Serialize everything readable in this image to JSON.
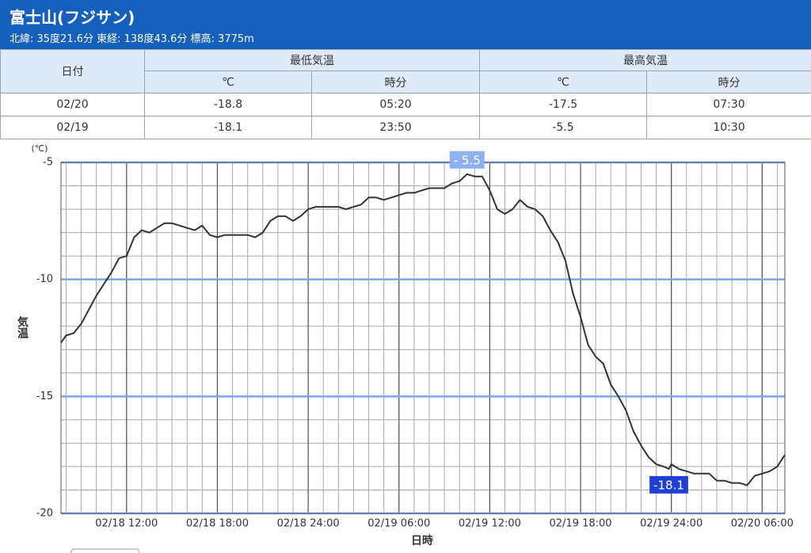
{
  "header": {
    "title": "富士山(フジサン)",
    "subtitle": "北緯: 35度21.6分 東経: 138度43.6分 標高: 3775m"
  },
  "table": {
    "columns": [
      "日付",
      "最低気温",
      "最高気温"
    ],
    "subcolumns": [
      "℃",
      "時分",
      "℃",
      "時分"
    ],
    "rows": [
      [
        "02/20",
        "-18.8",
        "05:20",
        "-17.5",
        "07:30"
      ],
      [
        "02/19",
        "-18.1",
        "23:50",
        "-5.5",
        "10:30"
      ]
    ]
  },
  "chart_data": {
    "type": "line",
    "y_unit_label": "(℃)",
    "ylabel": "気温",
    "xlabel": "日時",
    "color": "#333333",
    "grid": {
      "x_minor_hours": 1,
      "y_minor": 1,
      "major_y_color": "#7aa6ea"
    },
    "ylim": [
      -20,
      -5
    ],
    "yticks": [
      -5,
      -10,
      -15,
      -20
    ],
    "xlim": [
      "02/18 07:40",
      "02/20 07:30"
    ],
    "xticks": [
      "02/18 12:00",
      "02/18 18:00",
      "02/18 24:00",
      "02/19 06:00",
      "02/19 12:00",
      "02/19 18:00",
      "02/19 24:00",
      "02/20 06:00"
    ],
    "x": [
      "02/18 07:40",
      "02/18 08:00",
      "02/18 08:30",
      "02/18 09:00",
      "02/18 09:30",
      "02/18 10:00",
      "02/18 10:30",
      "02/18 11:00",
      "02/18 11:30",
      "02/18 12:00",
      "02/18 12:30",
      "02/18 13:00",
      "02/18 13:30",
      "02/18 14:00",
      "02/18 14:30",
      "02/18 15:00",
      "02/18 15:30",
      "02/18 16:00",
      "02/18 16:30",
      "02/18 17:00",
      "02/18 17:30",
      "02/18 18:00",
      "02/18 18:30",
      "02/18 19:00",
      "02/18 19:30",
      "02/18 20:00",
      "02/18 20:30",
      "02/18 21:00",
      "02/18 21:30",
      "02/18 22:00",
      "02/18 22:30",
      "02/18 23:00",
      "02/18 23:30",
      "02/19 00:00",
      "02/19 00:30",
      "02/19 01:00",
      "02/19 01:30",
      "02/19 02:00",
      "02/19 02:30",
      "02/19 03:00",
      "02/19 03:30",
      "02/19 04:00",
      "02/19 04:30",
      "02/19 05:00",
      "02/19 05:30",
      "02/19 06:00",
      "02/19 06:30",
      "02/19 07:00",
      "02/19 07:30",
      "02/19 08:00",
      "02/19 08:30",
      "02/19 09:00",
      "02/19 09:30",
      "02/19 10:00",
      "02/19 10:30",
      "02/19 11:00",
      "02/19 11:30",
      "02/19 12:00",
      "02/19 12:30",
      "02/19 13:00",
      "02/19 13:30",
      "02/19 14:00",
      "02/19 14:30",
      "02/19 15:00",
      "02/19 15:30",
      "02/19 16:00",
      "02/19 16:30",
      "02/19 17:00",
      "02/19 17:30",
      "02/19 18:00",
      "02/19 18:30",
      "02/19 19:00",
      "02/19 19:30",
      "02/19 20:00",
      "02/19 20:30",
      "02/19 21:00",
      "02/19 21:30",
      "02/19 22:00",
      "02/19 22:30",
      "02/19 23:00",
      "02/19 23:30",
      "02/19 23:50",
      "02/20 00:00",
      "02/20 00:30",
      "02/20 01:00",
      "02/20 01:30",
      "02/20 02:00",
      "02/20 02:30",
      "02/20 03:00",
      "02/20 03:30",
      "02/20 04:00",
      "02/20 04:30",
      "02/20 05:00",
      "02/20 05:30",
      "02/20 06:00",
      "02/20 06:30",
      "02/20 07:00",
      "02/20 07:30"
    ],
    "values": [
      -12.7,
      -12.4,
      -12.3,
      -11.9,
      -11.3,
      -10.7,
      -10.2,
      -9.7,
      -9.1,
      -9.0,
      -8.2,
      -7.9,
      -8.0,
      -7.8,
      -7.6,
      -7.6,
      -7.7,
      -7.8,
      -7.9,
      -7.7,
      -8.1,
      -8.2,
      -8.1,
      -8.1,
      -8.1,
      -8.1,
      -8.2,
      -8.0,
      -7.5,
      -7.3,
      -7.3,
      -7.5,
      -7.3,
      -7.0,
      -6.9,
      -6.9,
      -6.9,
      -6.9,
      -7.0,
      -6.9,
      -6.8,
      -6.5,
      -6.5,
      -6.6,
      -6.5,
      -6.4,
      -6.3,
      -6.3,
      -6.2,
      -6.1,
      -6.1,
      -6.1,
      -5.9,
      -5.8,
      -5.5,
      -5.6,
      -5.6,
      -6.2,
      -7.0,
      -7.2,
      -7.0,
      -6.6,
      -6.9,
      -7.0,
      -7.3,
      -7.9,
      -8.4,
      -9.2,
      -10.6,
      -11.6,
      -12.8,
      -13.3,
      -13.6,
      -14.5,
      -15.0,
      -15.6,
      -16.5,
      -17.1,
      -17.6,
      -17.9,
      -18.0,
      -18.1,
      -17.9,
      -18.1,
      -18.2,
      -18.3,
      -18.3,
      -18.3,
      -18.6,
      -18.6,
      -18.7,
      -18.7,
      -18.8,
      -18.4,
      -18.3,
      -18.2,
      -18.0,
      -17.5
    ],
    "annotations": [
      {
        "x": "02/19 10:30",
        "value": -5.5,
        "label": "- 5.5",
        "color": "#8db2ef"
      },
      {
        "x": "02/19 23:50",
        "value": -18.1,
        "label": "-18.1",
        "color": "#1f3fd6"
      }
    ]
  }
}
